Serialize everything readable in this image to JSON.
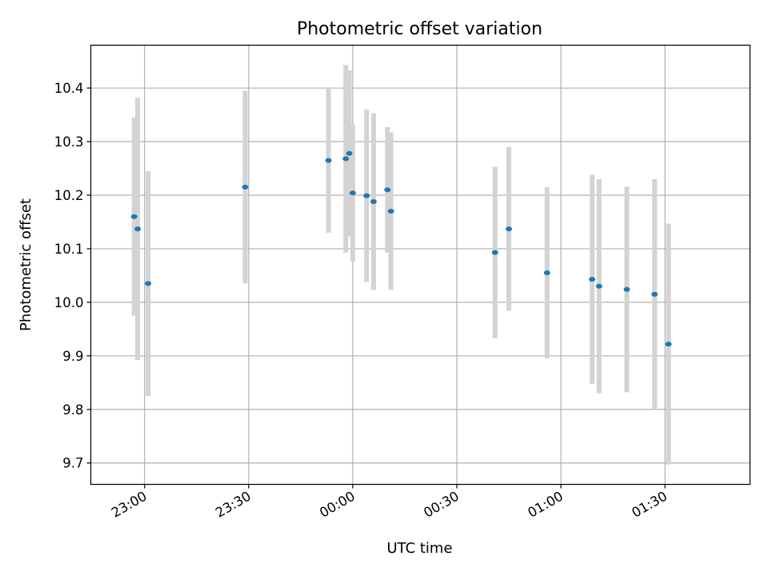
{
  "chart_data": {
    "type": "scatter",
    "title": "Photometric offset variation",
    "xlabel": "UTC time",
    "ylabel": "Photometric offset",
    "x_tick_labels": [
      "23:00",
      "23:30",
      "00:00",
      "00:30",
      "01:00",
      "01:30"
    ],
    "y_tick_labels": [
      "9.7",
      "9.8",
      "9.9",
      "10.0",
      "10.1",
      "10.2",
      "10.3",
      "10.4"
    ],
    "x_range_minutes": [
      -75.5,
      114.5
    ],
    "ylim": [
      9.66,
      10.48
    ],
    "grid": true,
    "series": [
      {
        "marker_color": "#1f77b4",
        "error_color": "#d3d3d3",
        "points": [
          {
            "t": "22:57",
            "y": 10.16,
            "err": 0.185
          },
          {
            "t": "22:57",
            "y": 10.137,
            "err": 0.245
          },
          {
            "t": "23:01",
            "y": 10.035,
            "err": 0.21
          },
          {
            "t": "23:29",
            "y": 10.215,
            "err": 0.18
          },
          {
            "t": "23:53",
            "y": 10.265,
            "err": 0.135
          },
          {
            "t": "23:58",
            "y": 10.268,
            "err": 0.175
          },
          {
            "t": "23:59",
            "y": 10.278,
            "err": 0.155
          },
          {
            "t": "00:00",
            "y": 10.204,
            "err": 0.128
          },
          {
            "t": "00:04",
            "y": 10.199,
            "err": 0.161
          },
          {
            "t": "00:06",
            "y": 10.188,
            "err": 0.165
          },
          {
            "t": "00:10",
            "y": 10.21,
            "err": 0.117
          },
          {
            "t": "00:11",
            "y": 10.17,
            "err": 0.147
          },
          {
            "t": "00:41",
            "y": 10.093,
            "err": 0.16
          },
          {
            "t": "00:45",
            "y": 10.137,
            "err": 0.153
          },
          {
            "t": "00:56",
            "y": 10.055,
            "err": 0.16
          },
          {
            "t": "01:09",
            "y": 10.043,
            "err": 0.195
          },
          {
            "t": "01:11",
            "y": 10.03,
            "err": 0.2
          },
          {
            "t": "01:19",
            "y": 10.024,
            "err": 0.192
          },
          {
            "t": "01:27",
            "y": 10.015,
            "err": 0.215
          },
          {
            "t": "01:31",
            "y": 9.922,
            "err": 0.225
          }
        ]
      }
    ]
  }
}
